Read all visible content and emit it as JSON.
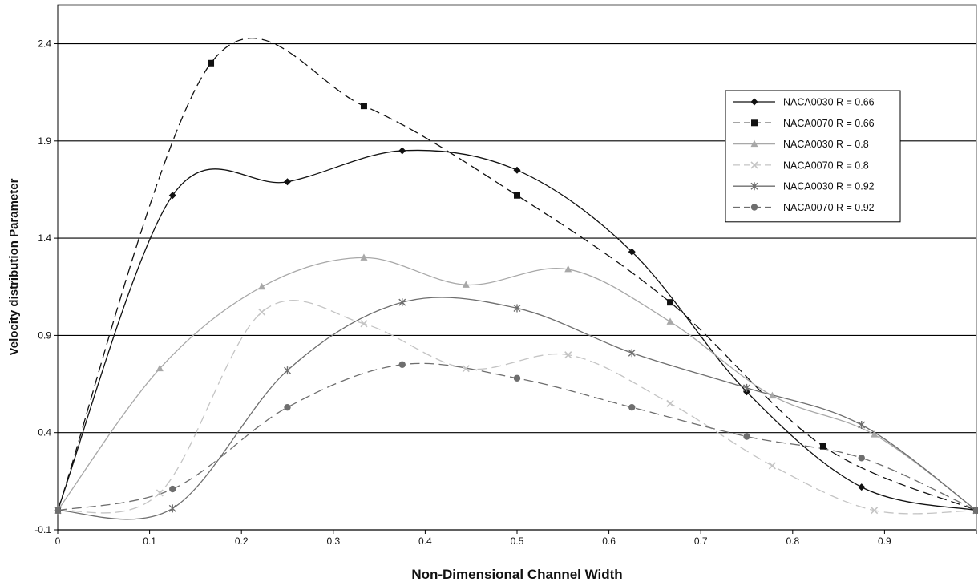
{
  "chart_data": {
    "type": "line",
    "title": "",
    "xlabel": "Non-Dimensional Channel Width",
    "ylabel": "Velocity distribution Parameter",
    "xlim": [
      0,
      1
    ],
    "ylim": [
      -0.1,
      2.6
    ],
    "x_ticks": [
      0,
      0.1,
      0.2,
      0.3,
      0.4,
      0.5,
      0.6,
      0.7,
      0.8,
      0.9
    ],
    "x_tick_labels": [
      "0",
      "0.1",
      "0.2",
      "0.3",
      "0.4",
      "0.5",
      "0.6",
      "0.7",
      "0.8",
      "0.9"
    ],
    "y_ticks": [
      -0.1,
      0.4,
      0.9,
      1.4,
      1.9,
      2.4
    ],
    "y_tick_labels": [
      "-0.1",
      "0.4",
      "0.9",
      "1.4",
      "1.9",
      "2.4"
    ],
    "grid": "horizontal major gridlines",
    "legend_position": "right",
    "series": [
      {
        "name": "NACA0030 R = 0.66",
        "color": "#111111",
        "dash": "solid",
        "marker": "diamond",
        "x": [
          0,
          0.125,
          0.25,
          0.375,
          0.5,
          0.625,
          0.75,
          0.875,
          1.0
        ],
        "y": [
          0.0,
          1.62,
          1.69,
          1.85,
          1.75,
          1.33,
          0.61,
          0.12,
          0.0
        ]
      },
      {
        "name": "NACA0070 R = 0.66",
        "color": "#111111",
        "dash": "dashed",
        "marker": "square",
        "x": [
          0,
          0.1667,
          0.3333,
          0.5,
          0.6667,
          0.8333,
          1.0
        ],
        "y": [
          0.0,
          2.3,
          2.08,
          1.62,
          1.07,
          0.33,
          0.0
        ]
      },
      {
        "name": "NACA0030 R = 0.8",
        "color": "#a8a8a8",
        "dash": "solid",
        "marker": "triangle",
        "x": [
          0,
          0.1111,
          0.2222,
          0.3333,
          0.4444,
          0.5556,
          0.6667,
          0.7778,
          0.8889,
          1.0
        ],
        "y": [
          0.0,
          0.73,
          1.15,
          1.3,
          1.16,
          1.24,
          0.97,
          0.59,
          0.39,
          0.0
        ]
      },
      {
        "name": "NACA0070 R = 0.8",
        "color": "#c4c4c4",
        "dash": "dashed",
        "marker": "x",
        "x": [
          0,
          0.1111,
          0.2222,
          0.3333,
          0.4444,
          0.5556,
          0.6667,
          0.7778,
          0.8889,
          1.0
        ],
        "y": [
          0.0,
          0.09,
          1.02,
          0.96,
          0.73,
          0.8,
          0.55,
          0.23,
          0.0,
          0.0
        ]
      },
      {
        "name": "NACA0030 R = 0.92",
        "color": "#6e6e6e",
        "dash": "solid",
        "marker": "star",
        "x": [
          0,
          0.125,
          0.25,
          0.375,
          0.5,
          0.625,
          0.75,
          0.875,
          1.0
        ],
        "y": [
          0.0,
          0.01,
          0.72,
          1.07,
          1.04,
          0.81,
          0.63,
          0.44,
          0.0
        ]
      },
      {
        "name": "NACA0070 R = 0.92",
        "color": "#6e6e6e",
        "dash": "dashed",
        "marker": "circle",
        "x": [
          0,
          0.125,
          0.25,
          0.375,
          0.5,
          0.625,
          0.75,
          0.875,
          1.0
        ],
        "y": [
          0.0,
          0.11,
          0.53,
          0.75,
          0.68,
          0.53,
          0.38,
          0.27,
          0.0
        ]
      }
    ]
  }
}
